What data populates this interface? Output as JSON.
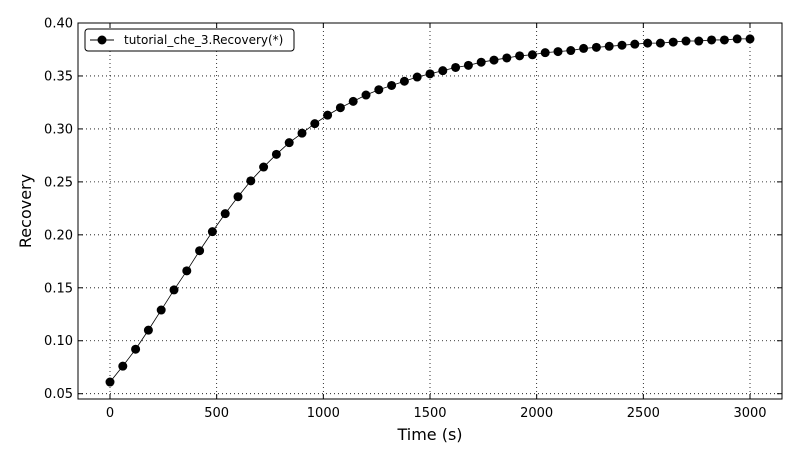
{
  "chart_data": {
    "type": "line",
    "xlabel": "Time (s)",
    "ylabel": "Recovery",
    "xlim": [
      -150,
      3150
    ],
    "ylim": [
      0.045,
      0.4
    ],
    "x_ticks": [
      0,
      500,
      1000,
      1500,
      2000,
      2500,
      3000
    ],
    "x_tick_labels": [
      "0",
      "500",
      "1000",
      "1500",
      "2000",
      "2500",
      "3000"
    ],
    "y_ticks": [
      0.05,
      0.1,
      0.15,
      0.2,
      0.25,
      0.3,
      0.35,
      0.4
    ],
    "y_tick_labels": [
      "0.05",
      "0.10",
      "0.15",
      "0.20",
      "0.25",
      "0.30",
      "0.35",
      "0.40"
    ],
    "grid": true,
    "legend_position": "top-left",
    "series": [
      {
        "name": "tutorial_che_3.Recovery(*)",
        "color": "#000000",
        "marker": "circle",
        "x": [
          0,
          60,
          120,
          180,
          240,
          300,
          360,
          420,
          480,
          540,
          600,
          660,
          720,
          780,
          840,
          900,
          960,
          1020,
          1080,
          1140,
          1200,
          1260,
          1320,
          1380,
          1440,
          1500,
          1560,
          1620,
          1680,
          1740,
          1800,
          1860,
          1920,
          1980,
          2040,
          2100,
          2160,
          2220,
          2280,
          2340,
          2400,
          2460,
          2520,
          2580,
          2640,
          2700,
          2760,
          2820,
          2880,
          2940,
          3000
        ],
        "y": [
          0.061,
          0.076,
          0.092,
          0.11,
          0.129,
          0.148,
          0.166,
          0.185,
          0.203,
          0.22,
          0.236,
          0.251,
          0.264,
          0.276,
          0.287,
          0.296,
          0.305,
          0.313,
          0.32,
          0.326,
          0.332,
          0.337,
          0.341,
          0.345,
          0.349,
          0.352,
          0.355,
          0.358,
          0.36,
          0.363,
          0.365,
          0.367,
          0.369,
          0.37,
          0.372,
          0.373,
          0.374,
          0.376,
          0.377,
          0.378,
          0.379,
          0.38,
          0.381,
          0.381,
          0.382,
          0.383,
          0.383,
          0.384,
          0.384,
          0.385,
          0.385
        ]
      }
    ]
  }
}
